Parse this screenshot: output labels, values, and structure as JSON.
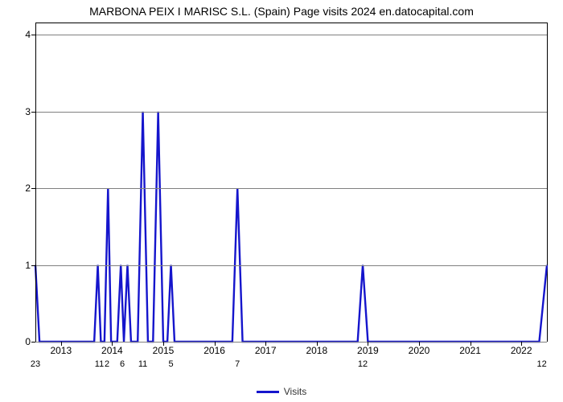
{
  "chart": {
    "type": "line",
    "title": "MARBONA PEIX I MARISC S.L. (Spain) Page visits 2024 en.datocapital.com",
    "title_fontsize": 14,
    "background_color": "#ffffff",
    "axis_color": "#000000",
    "grid_color": "#808080",
    "line_color": "#1515cc",
    "line_width": 2.4,
    "ylim": [
      0,
      4.15
    ],
    "ytick_step": 1,
    "yticks": [
      0,
      1,
      2,
      3,
      4
    ],
    "xlim": [
      0,
      1000
    ],
    "x_major_ticks": [
      {
        "pos": 50,
        "label": "2013"
      },
      {
        "pos": 150,
        "label": "2014"
      },
      {
        "pos": 250,
        "label": "2015"
      },
      {
        "pos": 350,
        "label": "2016"
      },
      {
        "pos": 450,
        "label": "2017"
      },
      {
        "pos": 550,
        "label": "2018"
      },
      {
        "pos": 650,
        "label": "2019"
      },
      {
        "pos": 750,
        "label": "2020"
      },
      {
        "pos": 850,
        "label": "2021"
      },
      {
        "pos": 950,
        "label": "2022"
      }
    ],
    "data_labels": [
      {
        "pos": 0,
        "label": "23"
      },
      {
        "pos": 125,
        "label": "11"
      },
      {
        "pos": 140,
        "label": "2"
      },
      {
        "pos": 170,
        "label": "6"
      },
      {
        "pos": 210,
        "label": "11"
      },
      {
        "pos": 265,
        "label": "5"
      },
      {
        "pos": 395,
        "label": "7"
      },
      {
        "pos": 640,
        "label": "12"
      },
      {
        "pos": 990,
        "label": "12"
      }
    ],
    "series": [
      {
        "x": 0,
        "y": 1.0
      },
      {
        "x": 8,
        "y": 0.0
      },
      {
        "x": 115,
        "y": 0.0
      },
      {
        "x": 122,
        "y": 1.0
      },
      {
        "x": 128,
        "y": 0.0
      },
      {
        "x": 135,
        "y": 0.0
      },
      {
        "x": 142,
        "y": 2.0
      },
      {
        "x": 148,
        "y": 0.0
      },
      {
        "x": 160,
        "y": 0.0
      },
      {
        "x": 167,
        "y": 1.0
      },
      {
        "x": 173,
        "y": 0.0
      },
      {
        "x": 180,
        "y": 1.0
      },
      {
        "x": 187,
        "y": 0.0
      },
      {
        "x": 200,
        "y": 0.0
      },
      {
        "x": 210,
        "y": 3.0
      },
      {
        "x": 220,
        "y": 0.0
      },
      {
        "x": 230,
        "y": 0.0
      },
      {
        "x": 240,
        "y": 3.0
      },
      {
        "x": 250,
        "y": 0.0
      },
      {
        "x": 258,
        "y": 0.0
      },
      {
        "x": 265,
        "y": 1.0
      },
      {
        "x": 272,
        "y": 0.0
      },
      {
        "x": 385,
        "y": 0.0
      },
      {
        "x": 395,
        "y": 2.0
      },
      {
        "x": 405,
        "y": 0.0
      },
      {
        "x": 630,
        "y": 0.0
      },
      {
        "x": 640,
        "y": 1.0
      },
      {
        "x": 650,
        "y": 0.0
      },
      {
        "x": 985,
        "y": 0.0
      },
      {
        "x": 1000,
        "y": 1.0
      }
    ],
    "legend": {
      "label": "Visits",
      "color": "#1515cc"
    }
  }
}
